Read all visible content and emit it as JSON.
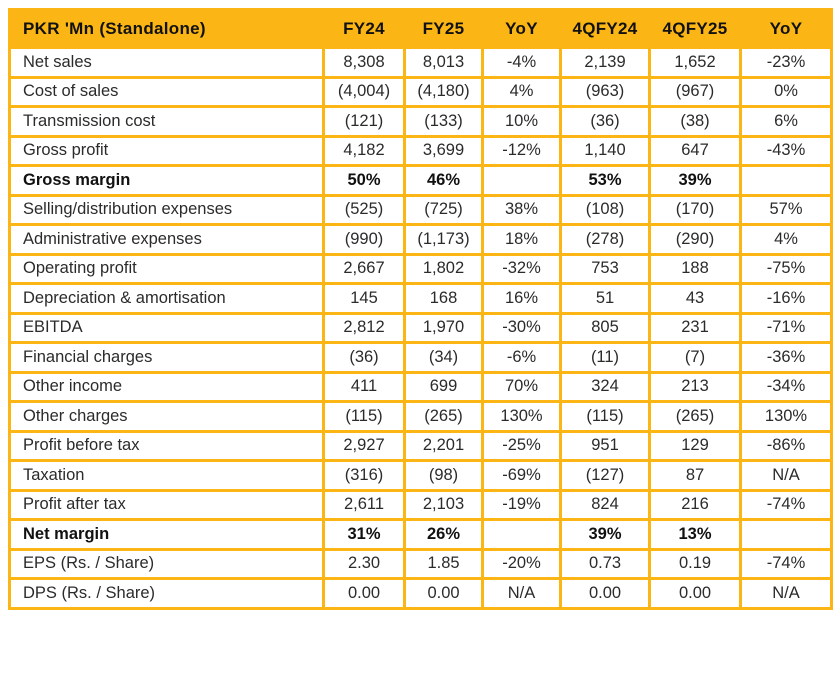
{
  "colors": {
    "accent": "#FBB615",
    "header_text": "#111111",
    "body_text": "#2B2B2B"
  },
  "table": {
    "columns": [
      "PKR 'Mn (Standalone)",
      "FY24",
      "FY25",
      "YoY",
      "4QFY24",
      "4QFY25",
      "YoY"
    ],
    "rows": [
      {
        "label": "Net sales",
        "values": [
          "8,308",
          "8,013",
          "-4%",
          "2,139",
          "1,652",
          "-23%"
        ],
        "bold": false
      },
      {
        "label": "Cost of sales",
        "values": [
          "(4,004)",
          "(4,180)",
          "4%",
          "(963)",
          "(967)",
          "0%"
        ],
        "bold": false
      },
      {
        "label": "Transmission cost",
        "values": [
          "(121)",
          "(133)",
          "10%",
          "(36)",
          "(38)",
          "6%"
        ],
        "bold": false
      },
      {
        "label": "Gross profit",
        "values": [
          "4,182",
          "3,699",
          "-12%",
          "1,140",
          "647",
          "-43%"
        ],
        "bold": false
      },
      {
        "label": "Gross margin",
        "values": [
          "50%",
          "46%",
          "",
          "53%",
          "39%",
          ""
        ],
        "bold": true
      },
      {
        "label": "Selling/distribution expenses",
        "values": [
          "(525)",
          "(725)",
          "38%",
          "(108)",
          "(170)",
          "57%"
        ],
        "bold": false
      },
      {
        "label": "Administrative expenses",
        "values": [
          "(990)",
          "(1,173)",
          "18%",
          "(278)",
          "(290)",
          "4%"
        ],
        "bold": false
      },
      {
        "label": "Operating profit",
        "values": [
          "2,667",
          "1,802",
          "-32%",
          "753",
          "188",
          "-75%"
        ],
        "bold": false
      },
      {
        "label": "Depreciation & amortisation",
        "values": [
          "145",
          "168",
          "16%",
          "51",
          "43",
          "-16%"
        ],
        "bold": false
      },
      {
        "label": "EBITDA",
        "values": [
          "2,812",
          "1,970",
          "-30%",
          "805",
          "231",
          "-71%"
        ],
        "bold": false
      },
      {
        "label": "Financial charges",
        "values": [
          "(36)",
          "(34)",
          "-6%",
          "(11)",
          "(7)",
          "-36%"
        ],
        "bold": false
      },
      {
        "label": "Other income",
        "values": [
          "411",
          "699",
          "70%",
          "324",
          "213",
          "-34%"
        ],
        "bold": false
      },
      {
        "label": "Other charges",
        "values": [
          "(115)",
          "(265)",
          "130%",
          "(115)",
          "(265)",
          "130%"
        ],
        "bold": false
      },
      {
        "label": "Profit before tax",
        "values": [
          "2,927",
          "2,201",
          "-25%",
          "951",
          "129",
          "-86%"
        ],
        "bold": false
      },
      {
        "label": "Taxation",
        "values": [
          "(316)",
          "(98)",
          "-69%",
          "(127)",
          "87",
          "N/A"
        ],
        "bold": false
      },
      {
        "label": "Profit after tax",
        "values": [
          "2,611",
          "2,103",
          "-19%",
          "824",
          "216",
          "-74%"
        ],
        "bold": false
      },
      {
        "label": "Net margin",
        "values": [
          "31%",
          "26%",
          "",
          "39%",
          "13%",
          ""
        ],
        "bold": true
      },
      {
        "label": "EPS (Rs. / Share)",
        "values": [
          "2.30",
          "1.85",
          "-20%",
          "0.73",
          "0.19",
          "-74%"
        ],
        "bold": false
      },
      {
        "label": "DPS (Rs. / Share)",
        "values": [
          "0.00",
          "0.00",
          "N/A",
          "0.00",
          "0.00",
          "N/A"
        ],
        "bold": false
      }
    ]
  }
}
